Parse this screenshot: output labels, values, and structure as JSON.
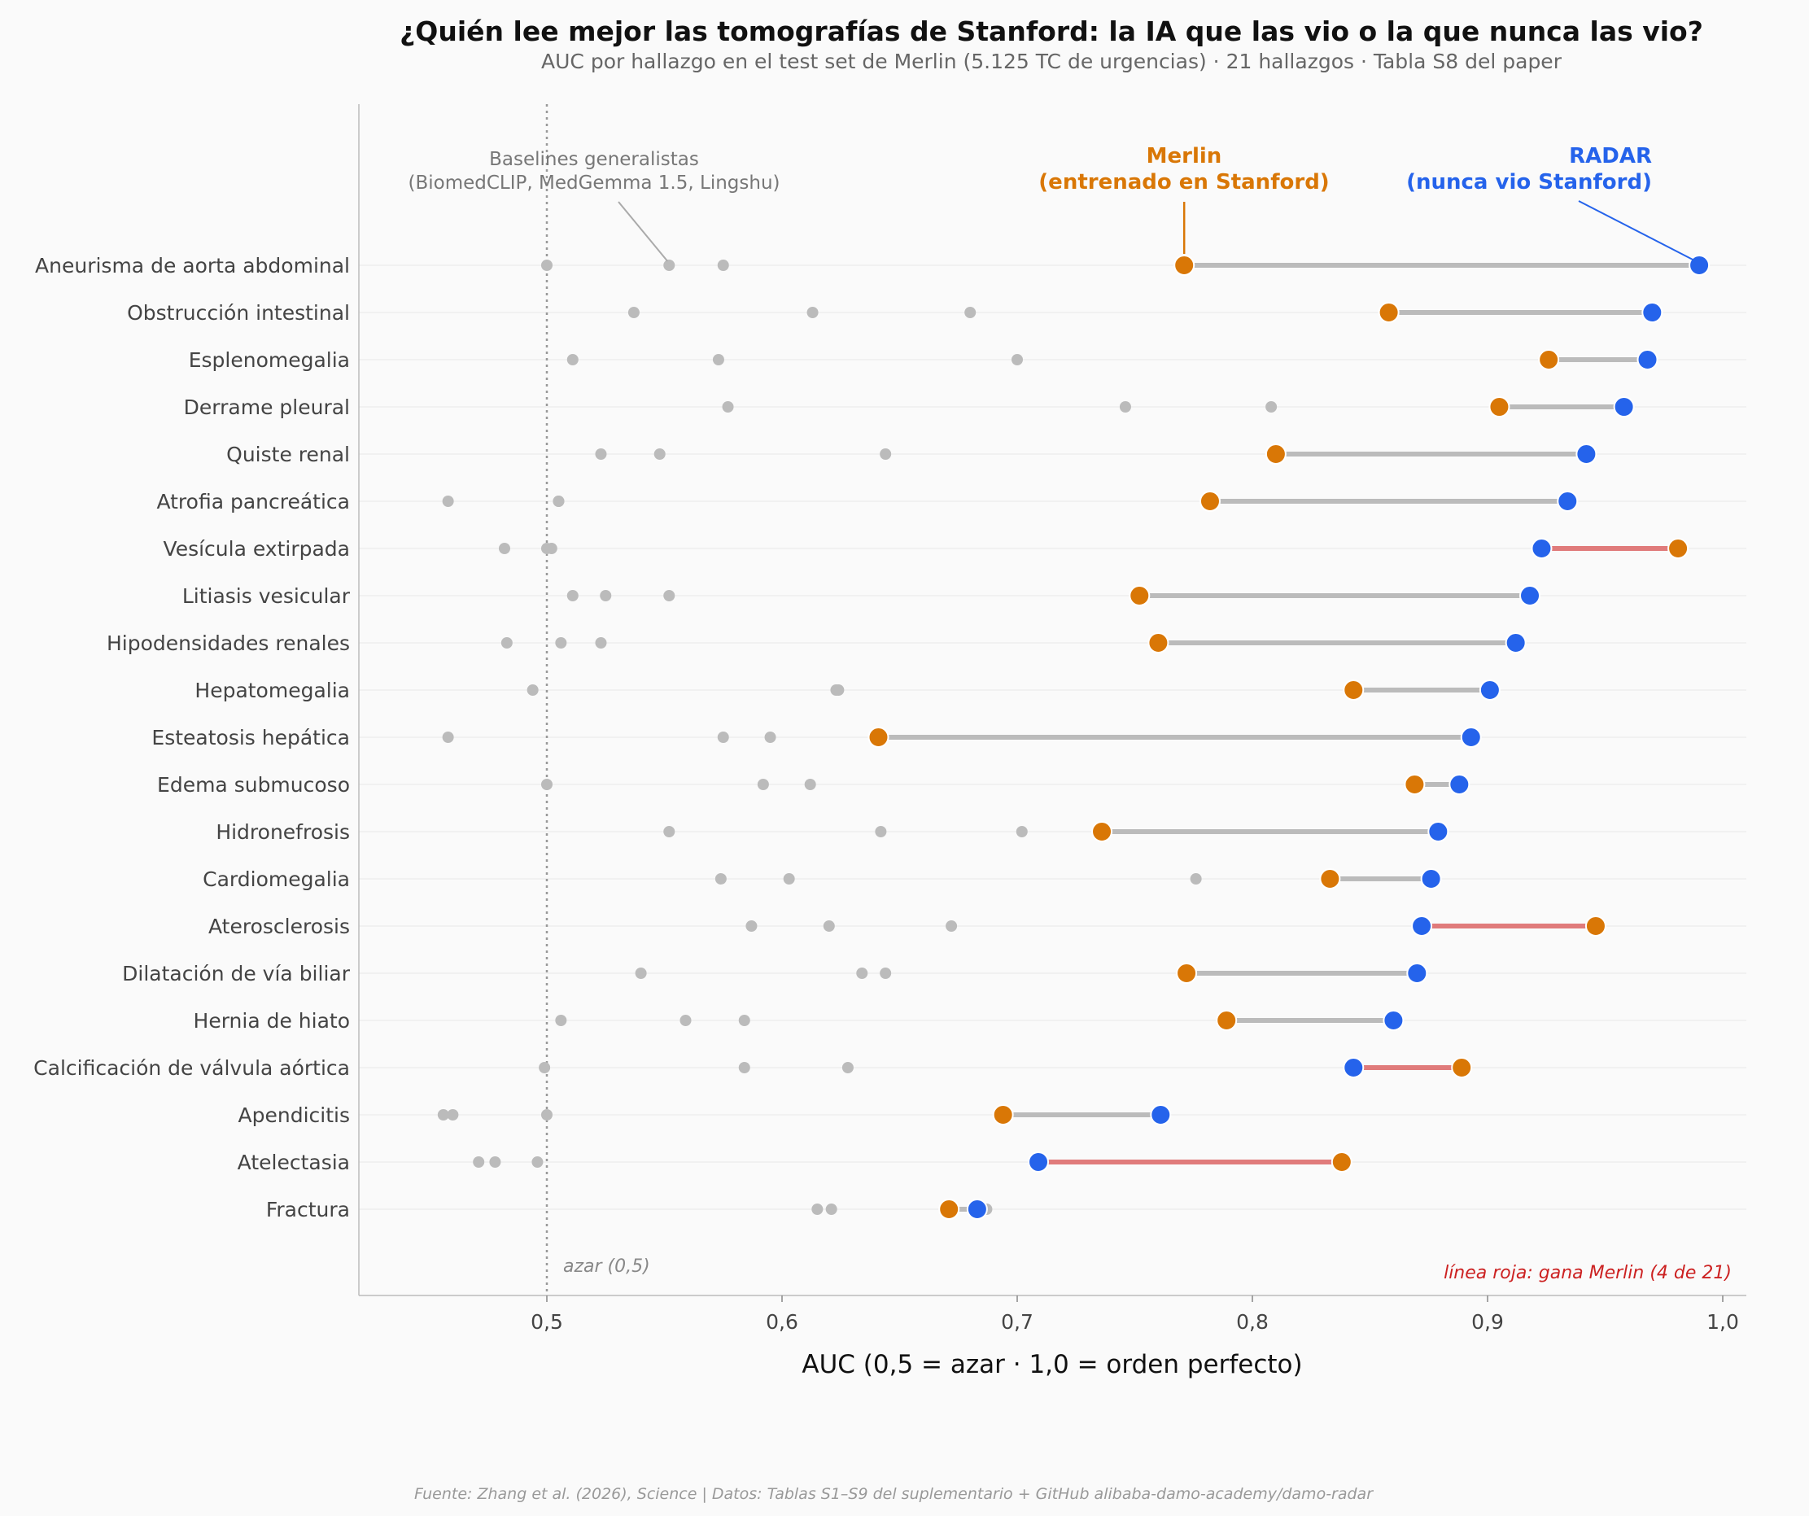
{
  "chart_data": {
    "type": "dot-dumbbell",
    "title": "¿Quién lee mejor las tomografías de Stanford: la IA que las vio o la que nunca las vio?",
    "subtitle": "AUC por hallazgo en el test set de Merlin (5.125 TC de urgencias) · 21 hallazgos · Tabla S8 del paper",
    "xlabel": "AUC (0,5 = azar · 1,0 = orden perfecto)",
    "xlim": [
      0.42,
      1.01
    ],
    "xticks": [
      0.5,
      0.6,
      0.7,
      0.8,
      0.9,
      1.0
    ],
    "xtick_labels": [
      "0,5",
      "0,6",
      "0,7",
      "0,8",
      "0,9",
      "1,0"
    ],
    "chance_line": {
      "x": 0.5,
      "label": "azar (0,5)"
    },
    "legend_labels": {
      "baselines_line1": "Baselines generalistas",
      "baselines_line2": "(BiomedCLIP, MedGemma 1.5, Lingshu)",
      "merlin_line1": "Merlin",
      "merlin_line2": "(entrenado en Stanford)",
      "radar_line1": "RADAR",
      "radar_line2": "(nunca vio Stanford)"
    },
    "red_note": "línea roja: gana Merlin (4 de 21)",
    "source": "Fuente: Zhang et al. (2026), Science | Datos: Tablas S1–S9 del suplementario + GitHub alibaba-damo-academy/damo-radar",
    "colors": {
      "merlin": "#d97706",
      "radar": "#2563eb",
      "baseline": "#bbbbbb",
      "connector": "#bbbbbb",
      "merlin_wins": "#e07b7b",
      "red_note": "#cc2222"
    },
    "findings": [
      {
        "name": "Aneurisma de aorta abdominal",
        "merlin": 0.771,
        "radar": 0.99,
        "baselines": [
          0.5,
          0.552,
          0.575
        ]
      },
      {
        "name": "Obstrucción intestinal",
        "merlin": 0.858,
        "radar": 0.97,
        "baselines": [
          0.537,
          0.613,
          0.68
        ]
      },
      {
        "name": "Esplenomegalia",
        "merlin": 0.926,
        "radar": 0.968,
        "baselines": [
          0.511,
          0.573,
          0.7
        ]
      },
      {
        "name": "Derrame pleural",
        "merlin": 0.905,
        "radar": 0.958,
        "baselines": [
          0.577,
          0.746,
          0.808
        ]
      },
      {
        "name": "Quiste renal",
        "merlin": 0.81,
        "radar": 0.942,
        "baselines": [
          0.523,
          0.548,
          0.644
        ]
      },
      {
        "name": "Atrofia pancreática",
        "merlin": 0.782,
        "radar": 0.934,
        "baselines": [
          0.458,
          0.505,
          0.505
        ]
      },
      {
        "name": "Vesícula extirpada",
        "merlin": 0.981,
        "radar": 0.923,
        "baselines": [
          0.482,
          0.5,
          0.502
        ]
      },
      {
        "name": "Litiasis vesicular",
        "merlin": 0.752,
        "radar": 0.918,
        "baselines": [
          0.511,
          0.525,
          0.552
        ]
      },
      {
        "name": "Hipodensidades renales",
        "merlin": 0.76,
        "radar": 0.912,
        "baselines": [
          0.483,
          0.506,
          0.523
        ]
      },
      {
        "name": "Hepatomegalia",
        "merlin": 0.843,
        "radar": 0.901,
        "baselines": [
          0.494,
          0.623,
          0.624
        ]
      },
      {
        "name": "Esteatosis hepática",
        "merlin": 0.641,
        "radar": 0.893,
        "baselines": [
          0.458,
          0.575,
          0.595
        ]
      },
      {
        "name": "Edema submucoso",
        "merlin": 0.869,
        "radar": 0.888,
        "baselines": [
          0.5,
          0.592,
          0.612
        ]
      },
      {
        "name": "Hidronefrosis",
        "merlin": 0.736,
        "radar": 0.879,
        "baselines": [
          0.552,
          0.642,
          0.702
        ]
      },
      {
        "name": "Cardiomegalia",
        "merlin": 0.833,
        "radar": 0.876,
        "baselines": [
          0.574,
          0.603,
          0.776
        ]
      },
      {
        "name": "Aterosclerosis",
        "merlin": 0.946,
        "radar": 0.872,
        "baselines": [
          0.587,
          0.62,
          0.672
        ]
      },
      {
        "name": "Dilatación de vía biliar",
        "merlin": 0.772,
        "radar": 0.87,
        "baselines": [
          0.54,
          0.634,
          0.644
        ]
      },
      {
        "name": "Hernia de hiato",
        "merlin": 0.789,
        "radar": 0.86,
        "baselines": [
          0.506,
          0.559,
          0.584
        ]
      },
      {
        "name": "Calcificación de válvula aórtica",
        "merlin": 0.889,
        "radar": 0.843,
        "baselines": [
          0.499,
          0.584,
          0.628
        ]
      },
      {
        "name": "Apendicitis",
        "merlin": 0.694,
        "radar": 0.761,
        "baselines": [
          0.456,
          0.46,
          0.5
        ]
      },
      {
        "name": "Atelectasia",
        "merlin": 0.838,
        "radar": 0.709,
        "baselines": [
          0.471,
          0.478,
          0.496
        ]
      },
      {
        "name": "Fractura",
        "merlin": 0.671,
        "radar": 0.683,
        "baselines": [
          0.615,
          0.621,
          0.687
        ]
      }
    ]
  }
}
